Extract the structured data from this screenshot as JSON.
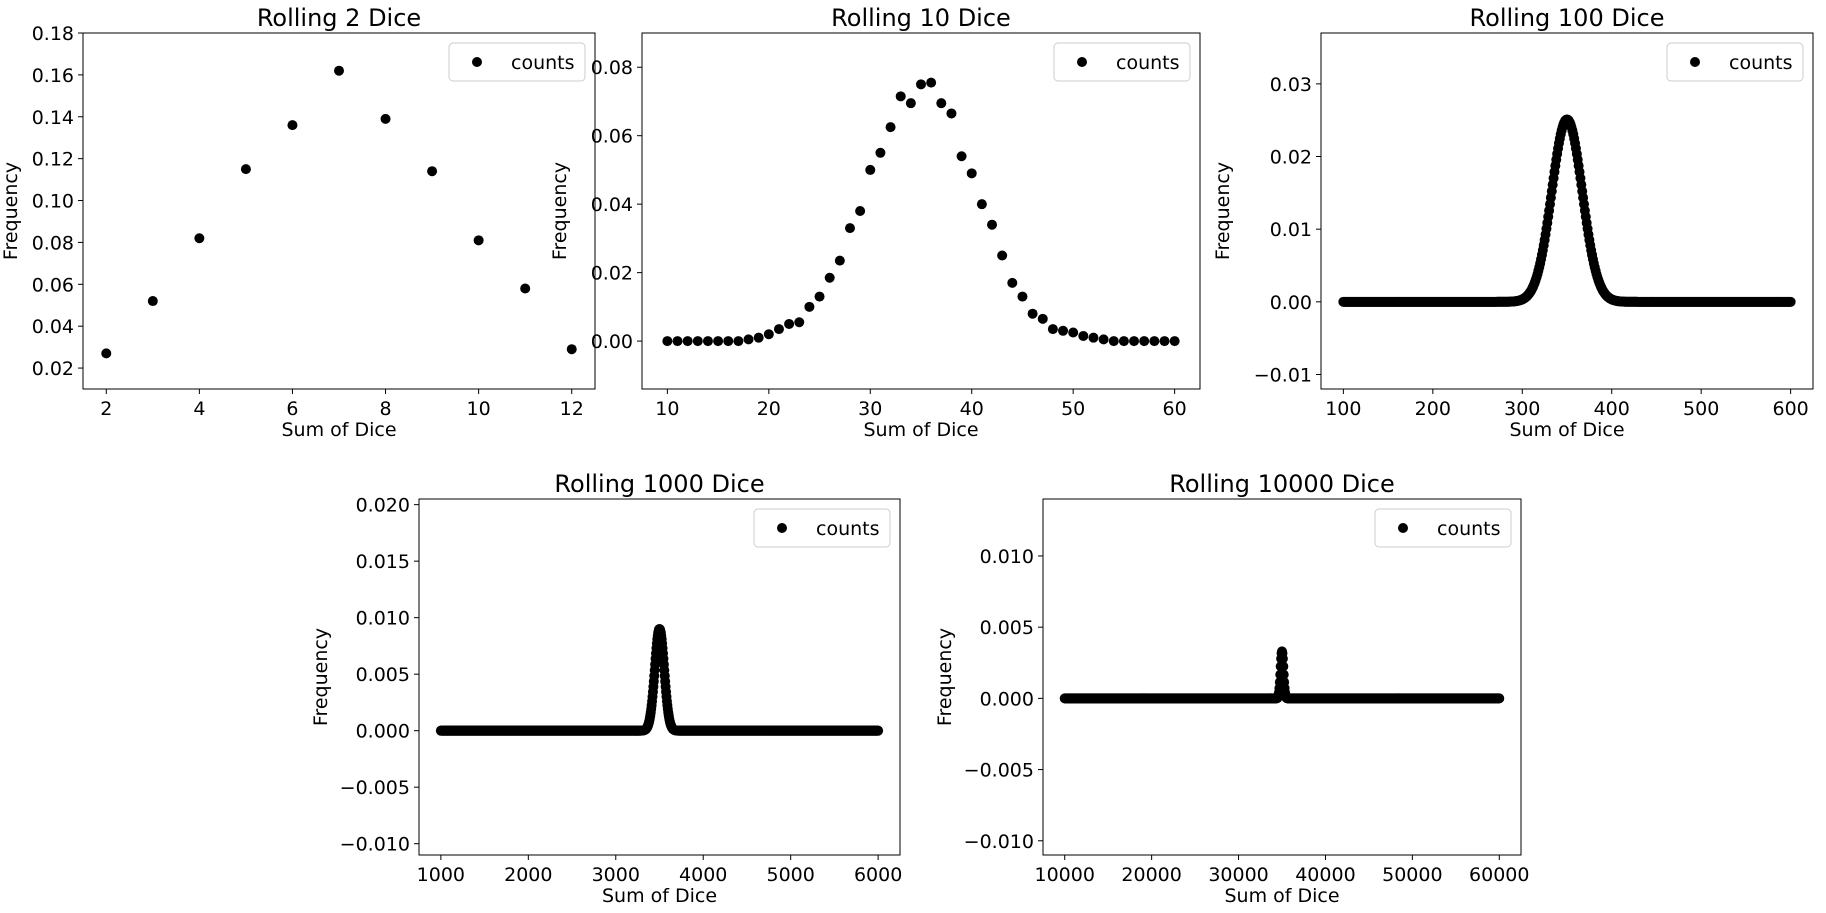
{
  "figure": {
    "background": "#ffffff",
    "marker_color": "#000000",
    "grid": false
  },
  "chart_data": [
    {
      "type": "scatter",
      "title": "Rolling 2 Dice",
      "xlabel": "Sum of Dice",
      "ylabel": "Frequency",
      "xlim": [
        1.5,
        12.5
      ],
      "ylim": [
        0.01,
        0.18
      ],
      "xticks": [
        2,
        4,
        6,
        8,
        10,
        12
      ],
      "yticks": [
        0.02,
        0.04,
        0.06,
        0.08,
        0.1,
        0.12,
        0.14,
        0.16,
        0.18
      ],
      "ytick_labels": [
        "0.02",
        "0.04",
        "0.06",
        "0.08",
        "0.10",
        "0.12",
        "0.14",
        "0.16",
        "0.18"
      ],
      "legend": {
        "label": "counts",
        "position": "top-right"
      },
      "series": [
        {
          "name": "counts",
          "mode": "points",
          "x": [
            2,
            3,
            4,
            5,
            6,
            7,
            8,
            9,
            10,
            11,
            12
          ],
          "y": [
            0.027,
            0.052,
            0.082,
            0.115,
            0.136,
            0.162,
            0.139,
            0.114,
            0.081,
            0.058,
            0.029
          ]
        }
      ]
    },
    {
      "type": "scatter",
      "title": "Rolling 10 Dice",
      "xlabel": "Sum of Dice",
      "ylabel": "Frequency",
      "xlim": [
        7.5,
        62.5
      ],
      "ylim": [
        -0.014,
        0.09
      ],
      "xticks": [
        10,
        20,
        30,
        40,
        50,
        60
      ],
      "yticks": [
        0.0,
        0.02,
        0.04,
        0.06,
        0.08
      ],
      "ytick_labels": [
        "0.00",
        "0.02",
        "0.04",
        "0.06",
        "0.08"
      ],
      "legend": {
        "label": "counts",
        "position": "top-right"
      },
      "series": [
        {
          "name": "counts",
          "mode": "points",
          "x": [
            10,
            11,
            12,
            13,
            14,
            15,
            16,
            17,
            18,
            19,
            20,
            21,
            22,
            23,
            24,
            25,
            26,
            27,
            28,
            29,
            30,
            31,
            32,
            33,
            34,
            35,
            36,
            37,
            38,
            39,
            40,
            41,
            42,
            43,
            44,
            45,
            46,
            47,
            48,
            49,
            50,
            51,
            52,
            53,
            54,
            55,
            56,
            57,
            58,
            59,
            60
          ],
          "y": [
            0,
            0,
            0,
            0,
            0,
            0,
            0,
            0,
            0.0005,
            0.001,
            0.002,
            0.0035,
            0.005,
            0.0055,
            0.01,
            0.013,
            0.0185,
            0.0235,
            0.033,
            0.038,
            0.05,
            0.055,
            0.0625,
            0.0715,
            0.0695,
            0.075,
            0.0755,
            0.0695,
            0.0665,
            0.054,
            0.049,
            0.04,
            0.034,
            0.025,
            0.017,
            0.013,
            0.008,
            0.0065,
            0.0035,
            0.003,
            0.0025,
            0.0015,
            0.001,
            0.0005,
            0,
            0,
            0,
            0,
            0,
            0,
            0
          ]
        }
      ]
    },
    {
      "type": "scatter",
      "title": "Rolling 100 Dice",
      "xlabel": "Sum of Dice",
      "ylabel": "Frequency",
      "xlim": [
        75,
        625
      ],
      "ylim": [
        -0.012,
        0.037
      ],
      "xticks": [
        100,
        200,
        300,
        400,
        500,
        600
      ],
      "yticks": [
        -0.01,
        0.0,
        0.01,
        0.02,
        0.03
      ],
      "ytick_labels": [
        "−0.01",
        "0.00",
        "0.01",
        "0.02",
        "0.03"
      ],
      "legend": {
        "label": "counts",
        "position": "top-right"
      },
      "series": [
        {
          "name": "counts",
          "mode": "normal",
          "range": [
            100,
            600
          ],
          "step": 1,
          "mean": 350,
          "sd": 17.0,
          "peak": 0.0251
        }
      ]
    },
    {
      "type": "scatter",
      "title": "Rolling 1000 Dice",
      "xlabel": "Sum of Dice",
      "ylabel": "Frequency",
      "xlim": [
        750,
        6250
      ],
      "ylim": [
        -0.011,
        0.0205
      ],
      "xticks": [
        1000,
        2000,
        3000,
        4000,
        5000,
        6000
      ],
      "yticks": [
        -0.01,
        -0.005,
        0.0,
        0.005,
        0.01,
        0.015,
        0.02
      ],
      "ytick_labels": [
        "−0.010",
        "−0.005",
        "0.000",
        "0.005",
        "0.010",
        "0.015",
        "0.020"
      ],
      "legend": {
        "label": "counts",
        "position": "top-right"
      },
      "series": [
        {
          "name": "counts",
          "mode": "normal",
          "range": [
            1000,
            6000
          ],
          "step": 5,
          "mean": 3500,
          "sd": 54,
          "peak": 0.009
        }
      ]
    },
    {
      "type": "scatter",
      "title": "Rolling 10000 Dice",
      "xlabel": "Sum of Dice",
      "ylabel": "Frequency",
      "xlim": [
        7500,
        62500
      ],
      "ylim": [
        -0.011,
        0.014
      ],
      "xticks": [
        10000,
        20000,
        30000,
        40000,
        50000,
        60000
      ],
      "yticks": [
        -0.01,
        -0.005,
        0.0,
        0.005,
        0.01
      ],
      "ytick_labels": [
        "−0.010",
        "−0.005",
        "0.000",
        "0.005",
        "0.010"
      ],
      "legend": {
        "label": "counts",
        "position": "top-right"
      },
      "series": [
        {
          "name": "counts",
          "mode": "normal",
          "range": [
            10000,
            60000
          ],
          "step": 50,
          "mean": 35000,
          "sd": 171,
          "peak": 0.0033
        }
      ]
    }
  ]
}
